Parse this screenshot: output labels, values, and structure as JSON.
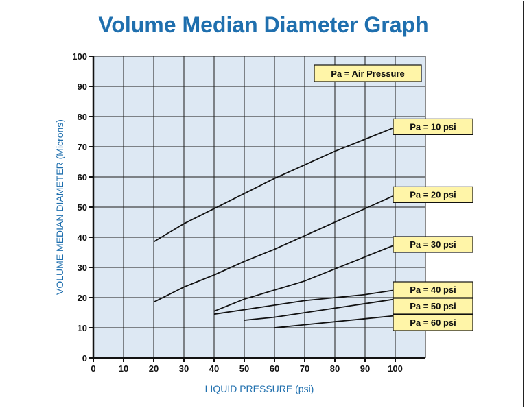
{
  "title": "Volume Median Diameter Graph",
  "chart_data": {
    "type": "line",
    "title": "Volume Median Diameter Graph",
    "xlabel": "LIQUID PRESSURE (psi)",
    "ylabel": "VOLUME MEDIAN DIAMETER (Microns)",
    "xlim": [
      0,
      110
    ],
    "ylim": [
      0,
      100
    ],
    "x_ticks": [
      0,
      10,
      20,
      30,
      40,
      50,
      60,
      70,
      80,
      90,
      100
    ],
    "y_ticks": [
      0,
      10,
      20,
      30,
      40,
      50,
      60,
      70,
      80,
      90,
      100
    ],
    "grid": true,
    "legend_note": "Pa  =  Air Pressure",
    "series": [
      {
        "name": "Pa  =  10 psi",
        "x": [
          20,
          30,
          40,
          50,
          60,
          70,
          80,
          90,
          100
        ],
        "y": [
          38.5,
          44.5,
          49.5,
          54.5,
          59.5,
          64,
          68.5,
          72.5,
          76.5
        ]
      },
      {
        "name": "Pa  =  20 psi",
        "x": [
          20,
          30,
          40,
          50,
          60,
          70,
          80,
          90,
          100
        ],
        "y": [
          18.5,
          23.5,
          27.5,
          32,
          36,
          40.5,
          45,
          49.5,
          54
        ]
      },
      {
        "name": "Pa  =  30 psi",
        "x": [
          40,
          50,
          60,
          70,
          80,
          90,
          100
        ],
        "y": [
          15.5,
          19.5,
          22.5,
          25.5,
          29.5,
          33.5,
          37.5
        ]
      },
      {
        "name": "Pa  =  40 psi",
        "x": [
          40,
          50,
          60,
          70,
          80,
          90,
          100
        ],
        "y": [
          14.5,
          16,
          17.5,
          19,
          20,
          21,
          22.5
        ]
      },
      {
        "name": "Pa  =  50 psi",
        "x": [
          50,
          60,
          70,
          80,
          90,
          100
        ],
        "y": [
          12.5,
          13.5,
          15,
          16.5,
          18,
          19.5
        ]
      },
      {
        "name": "Pa  =  60 psi",
        "x": [
          60,
          70,
          80,
          90,
          100
        ],
        "y": [
          10,
          11,
          12,
          13,
          14
        ]
      }
    ]
  }
}
